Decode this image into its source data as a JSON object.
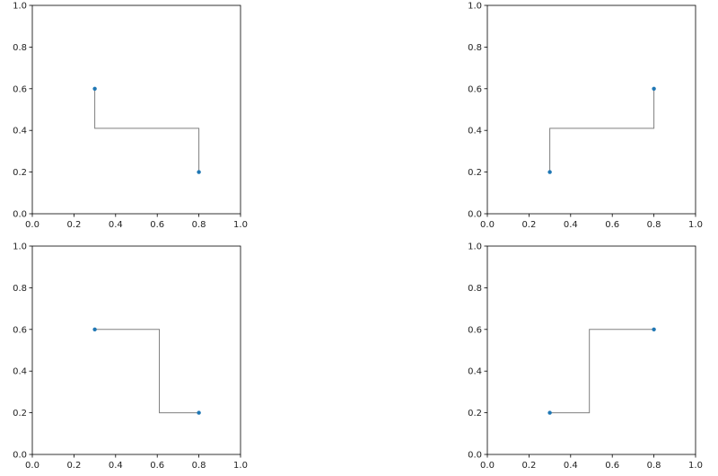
{
  "chart_data": [
    {
      "type": "line",
      "title": "",
      "xlabel": "",
      "ylabel": "",
      "xlim": [
        0,
        1
      ],
      "ylim": [
        0,
        1
      ],
      "xticks": [
        "0.0",
        "0.2",
        "0.4",
        "0.6",
        "0.8",
        "1.0"
      ],
      "yticks": [
        "0.0",
        "0.2",
        "0.4",
        "0.6",
        "0.8",
        "1.0"
      ],
      "points": [
        {
          "x": 0.3,
          "y": 0.6
        },
        {
          "x": 0.8,
          "y": 0.2
        }
      ],
      "connector": [
        [
          0.3,
          0.6
        ],
        [
          0.3,
          0.41
        ],
        [
          0.8,
          0.41
        ],
        [
          0.8,
          0.2
        ]
      ],
      "grid": false,
      "point_color": "#1f77b4",
      "line_color": "#808080"
    },
    {
      "type": "line",
      "title": "",
      "xlabel": "",
      "ylabel": "",
      "xlim": [
        0,
        1
      ],
      "ylim": [
        0,
        1
      ],
      "xticks": [
        "0.0",
        "0.2",
        "0.4",
        "0.6",
        "0.8",
        "1.0"
      ],
      "yticks": [
        "0.0",
        "0.2",
        "0.4",
        "0.6",
        "0.8",
        "1.0"
      ],
      "points": [
        {
          "x": 0.3,
          "y": 0.2
        },
        {
          "x": 0.8,
          "y": 0.6
        }
      ],
      "connector": [
        [
          0.3,
          0.2
        ],
        [
          0.3,
          0.41
        ],
        [
          0.8,
          0.41
        ],
        [
          0.8,
          0.6
        ]
      ],
      "grid": false,
      "point_color": "#1f77b4",
      "line_color": "#808080"
    },
    {
      "type": "line",
      "title": "",
      "xlabel": "",
      "ylabel": "",
      "xlim": [
        0,
        1
      ],
      "ylim": [
        0,
        1
      ],
      "xticks": [
        "0.0",
        "0.2",
        "0.4",
        "0.6",
        "0.8",
        "1.0"
      ],
      "yticks": [
        "0.0",
        "0.2",
        "0.4",
        "0.6",
        "0.8",
        "1.0"
      ],
      "points": [
        {
          "x": 0.3,
          "y": 0.6
        },
        {
          "x": 0.8,
          "y": 0.2
        }
      ],
      "connector": [
        [
          0.3,
          0.6
        ],
        [
          0.61,
          0.6
        ],
        [
          0.61,
          0.2
        ],
        [
          0.8,
          0.2
        ]
      ],
      "grid": false,
      "point_color": "#1f77b4",
      "line_color": "#808080"
    },
    {
      "type": "line",
      "title": "",
      "xlabel": "",
      "ylabel": "",
      "xlim": [
        0,
        1
      ],
      "ylim": [
        0,
        1
      ],
      "xticks": [
        "0.0",
        "0.2",
        "0.4",
        "0.6",
        "0.8",
        "1.0"
      ],
      "yticks": [
        "0.0",
        "0.2",
        "0.4",
        "0.6",
        "0.8",
        "1.0"
      ],
      "points": [
        {
          "x": 0.3,
          "y": 0.2
        },
        {
          "x": 0.8,
          "y": 0.6
        }
      ],
      "connector": [
        [
          0.3,
          0.2
        ],
        [
          0.49,
          0.2
        ],
        [
          0.49,
          0.6
        ],
        [
          0.8,
          0.6
        ]
      ],
      "grid": false,
      "point_color": "#1f77b4",
      "line_color": "#808080"
    }
  ]
}
